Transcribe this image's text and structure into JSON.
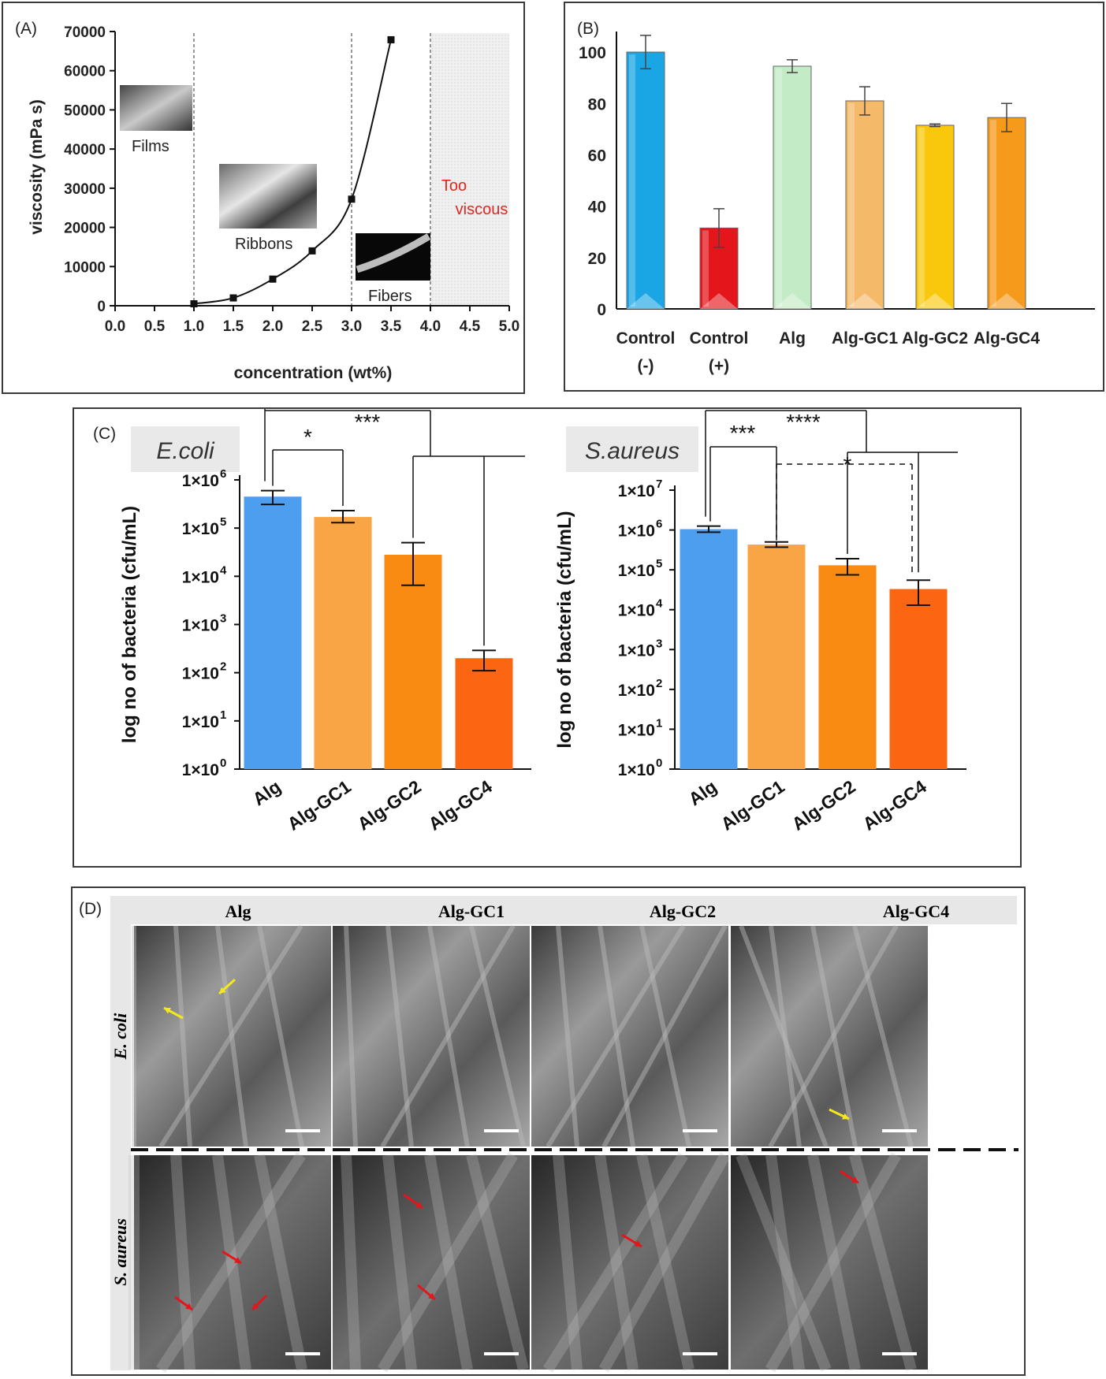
{
  "panels": {
    "a": {
      "label": "(A)",
      "chart_data": {
        "type": "line",
        "title": "",
        "xlabel": "concentration (wt%)",
        "ylabel": "viscosity (mPa s)",
        "xlim": [
          0.0,
          5.0
        ],
        "ylim": [
          0,
          70000
        ],
        "x_ticks": [
          "0.0",
          "0.5",
          "1.0",
          "1.5",
          "2.0",
          "2.5",
          "3.0",
          "3.5",
          "4.0",
          "4.5",
          "5.0"
        ],
        "y_ticks": [
          "0",
          "10000",
          "20000",
          "30000",
          "40000",
          "50000",
          "60000",
          "70000"
        ],
        "x": [
          1.0,
          1.5,
          2.0,
          2.5,
          3.0,
          3.5
        ],
        "y": [
          500,
          2000,
          6800,
          14000,
          27200,
          67900
        ],
        "dividers": [
          1.0,
          3.0,
          4.0
        ],
        "shaded_region": [
          4.0,
          5.0
        ],
        "region_labels": [
          "Films",
          "Ribbons",
          "Fibers"
        ],
        "too_viscous": [
          "Too",
          "viscous"
        ],
        "too_viscous_color": "#e0261f"
      }
    },
    "b": {
      "label": "(B)",
      "chart_data": {
        "type": "bar",
        "title": "",
        "xlabel": "",
        "ylabel": "",
        "ylim": [
          0,
          108
        ],
        "y_ticks": [
          "0",
          "20",
          "40",
          "60",
          "80",
          "100"
        ],
        "categories": [
          [
            "Control",
            "(-)"
          ],
          [
            "Control",
            "(+)"
          ],
          [
            "Alg"
          ],
          [
            "Alg-GC1"
          ],
          [
            "Alg-GC2"
          ],
          [
            "Alg-GC4"
          ]
        ],
        "values": [
          100,
          31.5,
          94.5,
          81,
          71.5,
          74.5
        ],
        "errors": [
          6.5,
          7.5,
          2.5,
          5.5,
          0.5,
          5.5
        ],
        "colors": [
          "#1aa6e4",
          "#e4161b",
          "#c3ecc6",
          "#f4b969",
          "#f9c80c",
          "#f59a1b"
        ]
      }
    },
    "c": {
      "label": "(C)",
      "charts": [
        {
          "organism": "E.coli",
          "chart_data": {
            "type": "bar",
            "scale": "log",
            "title": "",
            "ylabel": "log no of bacteria (cfu/mL)",
            "categories": [
              "Alg",
              "Alg-GC1",
              "Alg-GC2",
              "Alg-GC4"
            ],
            "values": [
              450000,
              170000,
              28000,
              200
            ],
            "err_high": [
              600000,
              230000,
              50000,
              290
            ],
            "err_low": [
              310000,
              130000,
              6500,
              110
            ],
            "ylim": [
              1,
              1000000
            ],
            "y_ticks": [
              {
                "base": "1×10",
                "exp": "0"
              },
              {
                "base": "1×10",
                "exp": "1"
              },
              {
                "base": "1×10",
                "exp": "2"
              },
              {
                "base": "1×10",
                "exp": "3"
              },
              {
                "base": "1×10",
                "exp": "4"
              },
              {
                "base": "1×10",
                "exp": "5"
              },
              {
                "base": "1×10",
                "exp": "6"
              }
            ],
            "significance": [
              {
                "from": "Alg",
                "to": "Alg-GC1",
                "label": "*"
              },
              {
                "from": "Alg",
                "to": [
                  "Alg-GC2",
                  "Alg-GC4"
                ],
                "label": "***"
              }
            ],
            "colors": [
              "#4e9ef0",
              "#f9a545",
              "#f98a12",
              "#fc6612"
            ]
          }
        },
        {
          "organism": "S.aureus",
          "chart_data": {
            "type": "bar",
            "scale": "log",
            "title": "",
            "ylabel": "log no of bacteria (cfu/mL)",
            "categories": [
              "Alg",
              "Alg-GC1",
              "Alg-GC2",
              "Alg-GC4"
            ],
            "values": [
              1050000,
              430000,
              130000,
              33000
            ],
            "err_high": [
              1250000,
              500000,
              190000,
              55000
            ],
            "err_low": [
              880000,
              370000,
              75000,
              13000
            ],
            "ylim": [
              1,
              10000000
            ],
            "y_ticks": [
              {
                "base": "1×10",
                "exp": "0"
              },
              {
                "base": "1×10",
                "exp": "1"
              },
              {
                "base": "1×10",
                "exp": "2"
              },
              {
                "base": "1×10",
                "exp": "3"
              },
              {
                "base": "1×10",
                "exp": "4"
              },
              {
                "base": "1×10",
                "exp": "5"
              },
              {
                "base": "1×10",
                "exp": "6"
              },
              {
                "base": "1×10",
                "exp": "7"
              }
            ],
            "significance": [
              {
                "from": "Alg",
                "to": "Alg-GC1",
                "label": "***"
              },
              {
                "from": "Alg",
                "to": [
                  "Alg-GC2",
                  "Alg-GC4"
                ],
                "label": "****"
              },
              {
                "from": "Alg-GC1",
                "to": "Alg-GC4",
                "label": "*",
                "style": "dashed"
              }
            ],
            "colors": [
              "#4e9ef0",
              "#f9a545",
              "#f98a12",
              "#fc6612"
            ]
          }
        }
      ]
    },
    "d": {
      "label": "(D)",
      "columns": [
        "Alg",
        "Alg-GC1",
        "Alg-GC2",
        "Alg-GC4"
      ],
      "rows": [
        "E. coli",
        "S. aureus"
      ]
    }
  }
}
